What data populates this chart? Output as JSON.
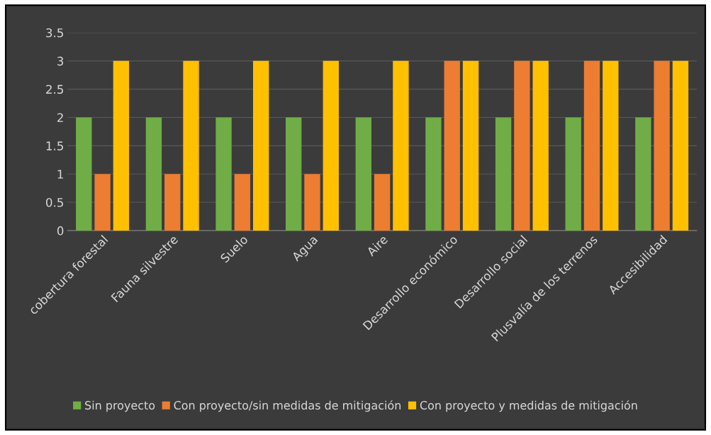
{
  "chart_data": {
    "type": "bar",
    "categories": [
      "cobertura forestal",
      "Fauna silvestre",
      "Suelo",
      "Agua",
      "Aire",
      "Desarrollo económico",
      "Desarrollo social",
      "Plusvalía de los terrenos",
      "Accesibilidad"
    ],
    "series": [
      {
        "name": "Sin proyecto",
        "color": "#70ad47",
        "values": [
          2,
          2,
          2,
          2,
          2,
          2,
          2,
          2,
          2
        ]
      },
      {
        "name": "Con proyecto/sin medidas de mitigación",
        "color": "#ed7d31",
        "values": [
          1,
          1,
          1,
          1,
          1,
          3,
          3,
          3,
          3
        ]
      },
      {
        "name": "Con proyecto y medidas de mitigación",
        "color": "#ffc000",
        "values": [
          3,
          3,
          3,
          3,
          3,
          3,
          3,
          3,
          3
        ]
      }
    ],
    "ylim": [
      0,
      3.5
    ],
    "yticks": [
      0,
      0.5,
      1,
      1.5,
      2,
      2.5,
      3,
      3.5
    ],
    "grid": "y",
    "legend": "bottom"
  }
}
